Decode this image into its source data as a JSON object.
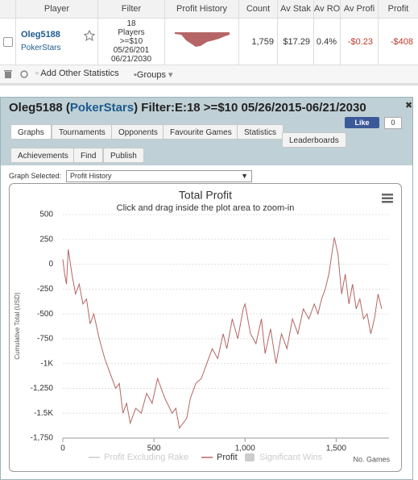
{
  "table": {
    "headers": [
      "Player",
      "Filter",
      "Profit History",
      "Count",
      "Av Stak",
      "Av ROI",
      "Av Profi",
      "Profit"
    ],
    "row": {
      "player": "Oleg5188",
      "site": "PokerStars",
      "filter_lines": [
        "18",
        "Players",
        ">=$10",
        "05/26/201",
        "06/21/2030"
      ],
      "count": "1,759",
      "av_stake": "$17.29",
      "av_roi": "0.4%",
      "av_profit": "-$0.23",
      "profit": "-$408"
    }
  },
  "toolbar": {
    "add_stats": "Add Other Statistics",
    "groups": "Groups"
  },
  "panel": {
    "player": "Oleg5188",
    "site": "PokerStars",
    "filter": "Filter:E:18 >=$10 05/26/2015-06/21/2030",
    "like": "Like",
    "like_count": "0",
    "tabs": [
      "Graphs",
      "Tournaments",
      "Opponents",
      "Favourite Games",
      "Statistics",
      "Leaderboards",
      "Achievements",
      "Find",
      "Publish"
    ],
    "graph_selected_label": "Graph Selected:",
    "graph_selected": "Profit History"
  },
  "chart_data": {
    "type": "line",
    "title": "Total Profit",
    "subtitle": "Click and drag inside the plot area to zoom-in",
    "y_label": "Cumulative Total (USD)",
    "x_label": "No. Games",
    "xlim": [
      0,
      1790
    ],
    "xticks": [
      0,
      500,
      {
        "value": 1000,
        "label": "1,000"
      },
      {
        "value": 1500,
        "label": "1,500"
      }
    ],
    "ylim": [
      -1750,
      500
    ],
    "yticks": [
      500,
      250,
      0,
      -250,
      -500,
      -750,
      {
        "value": -1000,
        "label": "-1K"
      },
      {
        "value": -1250,
        "label": "-1,250"
      },
      {
        "value": -1500,
        "label": "-1.5K"
      },
      {
        "value": -1750,
        "label": "-1,750"
      }
    ],
    "grid": true,
    "legend": [
      "Profit Excluding Rake",
      "Profit",
      "Significant Wins"
    ],
    "series": [
      {
        "name": "Profit",
        "color": "#b56565",
        "x": [
          0,
          10,
          20,
          30,
          50,
          70,
          90,
          110,
          130,
          150,
          170,
          200,
          230,
          260,
          290,
          310,
          330,
          350,
          370,
          400,
          430,
          460,
          490,
          520,
          560,
          600,
          620,
          640,
          680,
          700,
          730,
          760,
          790,
          820,
          850,
          880,
          900,
          930,
          960,
          990,
          1000,
          1030,
          1060,
          1090,
          1110,
          1140,
          1170,
          1200,
          1230,
          1260,
          1290,
          1320,
          1350,
          1380,
          1400,
          1420,
          1440,
          1460,
          1480,
          1490,
          1510,
          1530,
          1550,
          1570,
          1590,
          1610,
          1630,
          1650,
          1670,
          1690,
          1710,
          1730,
          1750
        ],
        "values": [
          50,
          -100,
          -200,
          150,
          -100,
          -300,
          -200,
          -400,
          -350,
          -600,
          -500,
          -750,
          -950,
          -1100,
          -1250,
          -1200,
          -1500,
          -1400,
          -1600,
          -1450,
          -1500,
          -1300,
          -1400,
          -1150,
          -1350,
          -1500,
          -1450,
          -1650,
          -1550,
          -1350,
          -1200,
          -1150,
          -1000,
          -850,
          -950,
          -700,
          -850,
          -550,
          -750,
          -450,
          -400,
          -700,
          -800,
          -550,
          -900,
          -650,
          -1000,
          -700,
          -850,
          -550,
          -700,
          -450,
          -550,
          -400,
          -500,
          -350,
          -250,
          -100,
          150,
          270,
          100,
          -300,
          -100,
          -400,
          -200,
          -450,
          -350,
          -550,
          -500,
          -700,
          -550,
          -300,
          -450
        ]
      }
    ]
  }
}
